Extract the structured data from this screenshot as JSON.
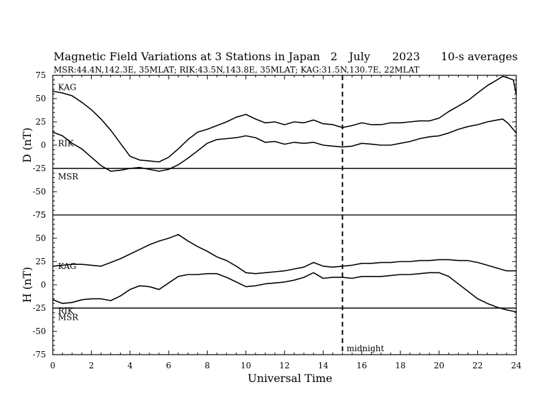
{
  "header": {
    "title": "Magnetic Field Variations at 3 Stations in Japan",
    "day": "2",
    "month": "July",
    "year": "2023",
    "averaging": "10-s averages",
    "stations_line": "MSR:44.4N,142.3E, 35MLAT;  RIK:43.5N,143.8E, 35MLAT;  KAG:31.5N,130.7E, 22MLAT"
  },
  "chart_data": {
    "type": "line",
    "x_label": "Universal Time",
    "x_range": [
      0,
      24
    ],
    "x_ticks": [
      "0",
      "2",
      "4",
      "6",
      "8",
      "10",
      "12",
      "14",
      "16",
      "18",
      "20",
      "22",
      "24"
    ],
    "midnight": {
      "x": 15,
      "label": "midnight"
    },
    "panels": [
      {
        "name": "D",
        "y_label": "D (nT)",
        "y_range": [
          -75,
          75
        ],
        "y_ticks": [
          "75",
          "50",
          "25",
          "0",
          "-25",
          "-50",
          "-75"
        ],
        "series": [
          {
            "name": "KAG",
            "label_at": [
              0.2,
              62
            ],
            "points": [
              [
                0,
                58
              ],
              [
                0.5,
                56
              ],
              [
                1,
                53
              ],
              [
                1.5,
                46
              ],
              [
                2,
                38
              ],
              [
                2.5,
                28
              ],
              [
                3,
                16
              ],
              [
                3.5,
                2
              ],
              [
                4,
                -12
              ],
              [
                4.5,
                -16
              ],
              [
                5,
                -17
              ],
              [
                5.5,
                -18
              ],
              [
                6,
                -13
              ],
              [
                6.5,
                -4
              ],
              [
                7,
                6
              ],
              [
                7.5,
                14
              ],
              [
                8,
                17
              ],
              [
                8.5,
                21
              ],
              [
                9,
                25
              ],
              [
                9.5,
                30
              ],
              [
                10,
                33
              ],
              [
                10.5,
                28
              ],
              [
                11,
                24
              ],
              [
                11.5,
                25
              ],
              [
                12,
                22
              ],
              [
                12.5,
                25
              ],
              [
                13,
                24
              ],
              [
                13.5,
                27
              ],
              [
                14,
                23
              ],
              [
                14.5,
                22
              ],
              [
                15,
                19
              ],
              [
                15.5,
                21
              ],
              [
                16,
                24
              ],
              [
                16.5,
                22
              ],
              [
                17,
                22
              ],
              [
                17.5,
                24
              ],
              [
                18,
                24
              ],
              [
                18.5,
                25
              ],
              [
                19,
                26
              ],
              [
                19.5,
                26
              ],
              [
                20,
                29
              ],
              [
                20.5,
                36
              ],
              [
                21,
                42
              ],
              [
                21.5,
                48
              ],
              [
                22,
                56
              ],
              [
                22.5,
                64
              ],
              [
                23,
                70
              ],
              [
                23.3,
                74
              ],
              [
                23.6,
                72
              ],
              [
                23.85,
                70
              ],
              [
                24,
                54
              ]
            ]
          },
          {
            "name": "RIK",
            "label_at": [
              0.2,
              2
            ],
            "points": [
              [
                0,
                14
              ],
              [
                0.5,
                10
              ],
              [
                1,
                2
              ],
              [
                1.5,
                -4
              ],
              [
                2,
                -13
              ],
              [
                2.5,
                -22
              ],
              [
                3,
                -28
              ],
              [
                3.5,
                -27
              ],
              [
                4,
                -25
              ],
              [
                4.5,
                -24
              ],
              [
                5,
                -26
              ],
              [
                5.5,
                -28
              ],
              [
                6,
                -26
              ],
              [
                6.5,
                -21
              ],
              [
                7,
                -14
              ],
              [
                7.5,
                -6
              ],
              [
                8,
                2
              ],
              [
                8.5,
                6
              ],
              [
                9,
                7
              ],
              [
                9.5,
                8
              ],
              [
                10,
                10
              ],
              [
                10.5,
                8
              ],
              [
                11,
                3
              ],
              [
                11.5,
                4
              ],
              [
                12,
                1
              ],
              [
                12.5,
                3
              ],
              [
                13,
                2
              ],
              [
                13.5,
                3
              ],
              [
                14,
                0
              ],
              [
                14.5,
                -1
              ],
              [
                15,
                -2
              ],
              [
                15.5,
                -1
              ],
              [
                16,
                2
              ],
              [
                16.5,
                1
              ],
              [
                17,
                0
              ],
              [
                17.5,
                0
              ],
              [
                18,
                2
              ],
              [
                18.5,
                4
              ],
              [
                19,
                7
              ],
              [
                19.5,
                9
              ],
              [
                20,
                10
              ],
              [
                20.5,
                13
              ],
              [
                21,
                17
              ],
              [
                21.5,
                20
              ],
              [
                22,
                22
              ],
              [
                22.5,
                25
              ],
              [
                23,
                27
              ],
              [
                23.3,
                28
              ],
              [
                23.6,
                23
              ],
              [
                24,
                13
              ]
            ]
          },
          {
            "name": "MSR",
            "label_at": [
              0.2,
              -34
            ],
            "points": [
              [
                0,
                -25
              ],
              [
                24,
                -25
              ]
            ]
          }
        ]
      },
      {
        "name": "H",
        "y_label": "H (nT)",
        "y_range": [
          -75,
          75
        ],
        "y_ticks": [
          "75",
          "50",
          "25",
          "0",
          "-25",
          "-50",
          "-75"
        ],
        "series": [
          {
            "name": "KAG",
            "label_at": [
              0.2,
              20
            ],
            "points": [
              [
                0,
                20
              ],
              [
                0.5,
                21
              ],
              [
                1,
                22
              ],
              [
                1.5,
                22
              ],
              [
                2,
                21
              ],
              [
                2.5,
                20
              ],
              [
                3,
                24
              ],
              [
                3.5,
                28
              ],
              [
                4,
                33
              ],
              [
                4.5,
                38
              ],
              [
                5,
                43
              ],
              [
                5.5,
                47
              ],
              [
                6,
                50
              ],
              [
                6.5,
                54
              ],
              [
                7,
                47
              ],
              [
                7.5,
                41
              ],
              [
                8,
                36
              ],
              [
                8.5,
                30
              ],
              [
                9,
                26
              ],
              [
                9.5,
                20
              ],
              [
                10,
                13
              ],
              [
                10.5,
                12
              ],
              [
                11,
                13
              ],
              [
                11.5,
                14
              ],
              [
                12,
                15
              ],
              [
                12.5,
                17
              ],
              [
                13,
                19
              ],
              [
                13.5,
                24
              ],
              [
                14,
                20
              ],
              [
                14.5,
                19
              ],
              [
                15,
                20
              ],
              [
                15.5,
                21
              ],
              [
                16,
                23
              ],
              [
                16.5,
                23
              ],
              [
                17,
                24
              ],
              [
                17.5,
                24
              ],
              [
                18,
                25
              ],
              [
                18.5,
                25
              ],
              [
                19,
                26
              ],
              [
                19.5,
                26
              ],
              [
                20,
                27
              ],
              [
                20.5,
                27
              ],
              [
                21,
                26
              ],
              [
                21.5,
                26
              ],
              [
                22,
                24
              ],
              [
                22.5,
                21
              ],
              [
                23,
                18
              ],
              [
                23.5,
                15
              ],
              [
                24,
                15
              ]
            ]
          },
          {
            "name": "RIK",
            "label_at": [
              0.2,
              -28
            ],
            "points": [
              [
                0,
                -16
              ],
              [
                0.5,
                -20
              ],
              [
                1,
                -19
              ],
              [
                1.5,
                -16
              ],
              [
                2,
                -15
              ],
              [
                2.5,
                -15
              ],
              [
                3,
                -17
              ],
              [
                3.5,
                -12
              ],
              [
                4,
                -5
              ],
              [
                4.5,
                -1
              ],
              [
                5,
                -2
              ],
              [
                5.5,
                -5
              ],
              [
                6,
                2
              ],
              [
                6.5,
                9
              ],
              [
                7,
                11
              ],
              [
                7.5,
                11
              ],
              [
                8,
                12
              ],
              [
                8.5,
                12
              ],
              [
                9,
                8
              ],
              [
                9.5,
                3
              ],
              [
                10,
                -2
              ],
              [
                10.5,
                -1
              ],
              [
                11,
                1
              ],
              [
                11.5,
                2
              ],
              [
                12,
                3
              ],
              [
                12.5,
                5
              ],
              [
                13,
                8
              ],
              [
                13.5,
                13
              ],
              [
                14,
                7
              ],
              [
                14.5,
                8
              ],
              [
                15,
                8
              ],
              [
                15.5,
                7
              ],
              [
                16,
                9
              ],
              [
                16.5,
                9
              ],
              [
                17,
                9
              ],
              [
                17.5,
                10
              ],
              [
                18,
                11
              ],
              [
                18.5,
                11
              ],
              [
                19,
                12
              ],
              [
                19.5,
                13
              ],
              [
                20,
                13
              ],
              [
                20.5,
                9
              ],
              [
                21,
                1
              ],
              [
                21.5,
                -7
              ],
              [
                22,
                -15
              ],
              [
                22.5,
                -20
              ],
              [
                23,
                -24
              ],
              [
                23.5,
                -27
              ],
              [
                24,
                -29
              ]
            ]
          },
          {
            "name": "MSR",
            "label_at": [
              0.2,
              -35
            ],
            "points": [
              [
                0,
                -25
              ],
              [
                24,
                -25
              ]
            ]
          }
        ]
      }
    ]
  }
}
